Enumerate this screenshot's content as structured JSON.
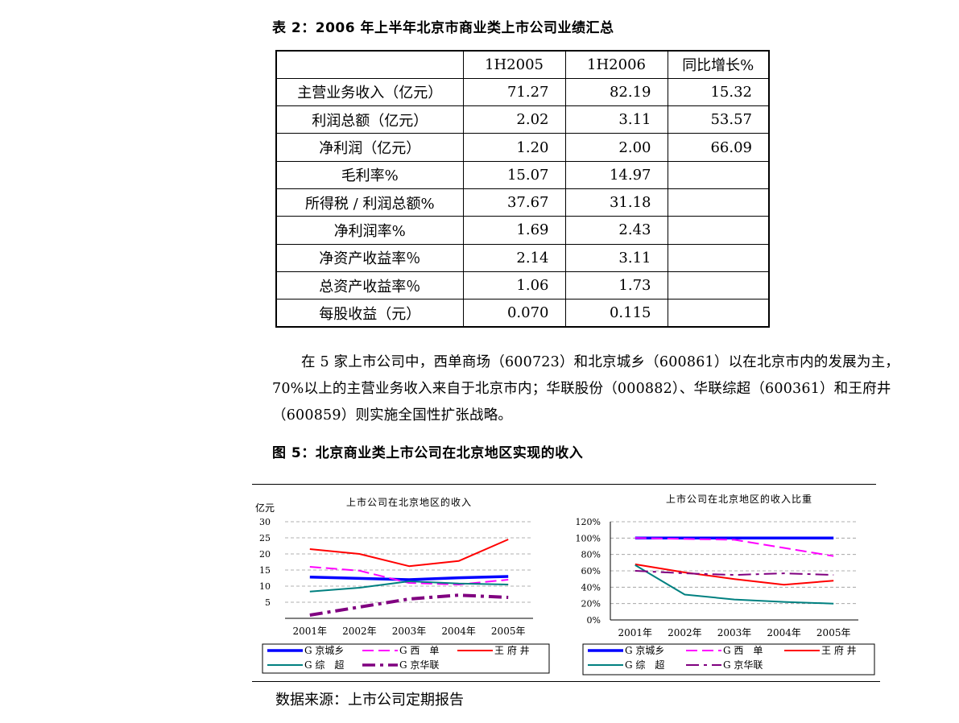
{
  "table_title": "表 2：2006 年上半年北京市商业类上市公司业绩汇总",
  "table": {
    "headers": [
      "",
      "1H2005",
      "1H2006",
      "同比增长%"
    ],
    "rows": [
      {
        "label": "主营业务收入（亿元）",
        "h2005": "71.27",
        "h2006": "82.19",
        "yoy": "15.32"
      },
      {
        "label": "利润总额（亿元）",
        "h2005": "2.02",
        "h2006": "3.11",
        "yoy": "53.57"
      },
      {
        "label": "净利润（亿元）",
        "h2005": "1.20",
        "h2006": "2.00",
        "yoy": "66.09"
      },
      {
        "label": "毛利率%",
        "h2005": "15.07",
        "h2006": "14.97",
        "yoy": ""
      },
      {
        "label": "所得税 / 利润总额%",
        "h2005": "37.67",
        "h2006": "31.18",
        "yoy": ""
      },
      {
        "label": "净利润率%",
        "h2005": "1.69",
        "h2006": "2.43",
        "yoy": ""
      },
      {
        "label": "净资产收益率％",
        "h2005": "2.14",
        "h2006": "3.11",
        "yoy": ""
      },
      {
        "label": "总资产收益率％",
        "h2005": "1.06",
        "h2006": "1.73",
        "yoy": ""
      },
      {
        "label": "每股收益（元）",
        "h2005": "0.070",
        "h2006": "0.115",
        "yoy": ""
      }
    ]
  },
  "paragraph": "在 5 家上市公司中，西单商场（600723）和北京城乡（600861）以在北京市内的发展为主，70%以上的主营业务收入来自于北京市内；华联股份（000882）、华联综超（600361）和王府井（600859）则实施全国性扩张战略。",
  "figure_title": "图 5：北京商业类上市公司在北京地区实现的收入",
  "source": "数据来源：上市公司定期报告",
  "chart_data": [
    {
      "type": "line",
      "title": "上市公司在北京地区的收入",
      "ylabel": "亿元",
      "xlabel": "",
      "ylim": [
        0,
        30
      ],
      "yticks": [
        "30",
        "25",
        "20",
        "15",
        "10",
        "5"
      ],
      "x": [
        "2001年",
        "2002年",
        "2003年",
        "2004年",
        "2005年"
      ],
      "grid": true,
      "legend": "bottom",
      "series": [
        {
          "name": "G 京城乡",
          "color": "#0000ff",
          "dash": "solid",
          "width": 3.5,
          "values": [
            12.8,
            12.4,
            12.0,
            12.6,
            13.0
          ]
        },
        {
          "name": "G 西　单",
          "color": "#ff00ff",
          "dash": "long-dash",
          "width": 2,
          "values": [
            16.0,
            14.8,
            11.0,
            10.5,
            12.0
          ]
        },
        {
          "name": "王 府 井",
          "color": "#ff0000",
          "dash": "solid",
          "width": 2,
          "values": [
            21.5,
            20.0,
            16.2,
            17.8,
            24.5
          ]
        },
        {
          "name": "G 综　超",
          "color": "#008080",
          "dash": "solid",
          "width": 2,
          "values": [
            8.3,
            9.5,
            11.5,
            10.8,
            10.5
          ]
        },
        {
          "name": "G 京华联",
          "color": "#800080",
          "dash": "dash-dot",
          "width": 4,
          "values": [
            1.0,
            3.5,
            6.0,
            7.2,
            6.5
          ]
        }
      ]
    },
    {
      "type": "line",
      "title": "上市公司在北京地区的收入比重",
      "xlabel": "",
      "ylabel": "",
      "ylim": [
        0,
        120
      ],
      "yticks": [
        "120%",
        "100%",
        "80%",
        "60%",
        "40%",
        "20%",
        "0%"
      ],
      "x": [
        "2001年",
        "2002年",
        "2003年",
        "2004年",
        "2005年"
      ],
      "grid": true,
      "legend": "bottom",
      "series": [
        {
          "name": "G 京城乡",
          "color": "#0000ff",
          "dash": "solid",
          "width": 3.5,
          "values": [
            100,
            100,
            100,
            100,
            100
          ]
        },
        {
          "name": "G 西　单",
          "color": "#ff00ff",
          "dash": "long-dash",
          "width": 2,
          "values": [
            100,
            99,
            98,
            88,
            78
          ]
        },
        {
          "name": "王 府 井",
          "color": "#ff0000",
          "dash": "solid",
          "width": 2,
          "values": [
            68,
            58,
            50,
            43,
            48
          ]
        },
        {
          "name": "G 综　超",
          "color": "#008080",
          "dash": "solid",
          "width": 2,
          "values": [
            67,
            31,
            25,
            22,
            20
          ]
        },
        {
          "name": "G 京华联",
          "color": "#800080",
          "dash": "dash-dot",
          "width": 2,
          "values": [
            60,
            57,
            55,
            57,
            55
          ]
        }
      ]
    }
  ]
}
